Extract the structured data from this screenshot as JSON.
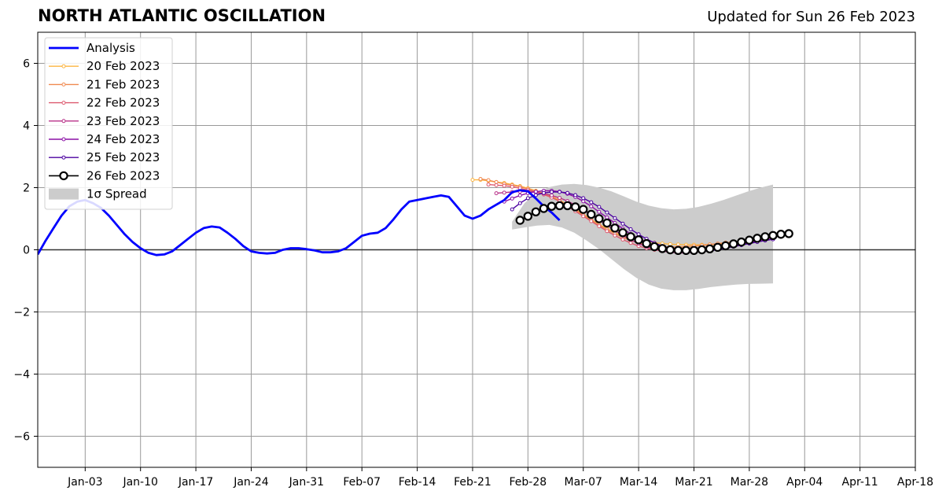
{
  "chart_data": {
    "type": "line",
    "title": "NORTH ATLANTIC OSCILLATION",
    "subtitle": "Updated for Sun 26 Feb 2023",
    "xlabel": "",
    "ylabel": "",
    "xlim": [
      "2022-12-28",
      "2023-04-18"
    ],
    "ylim": [
      -7,
      7
    ],
    "grid": true,
    "legend_position": "upper-left",
    "x_ticks": [
      "2023-01-03",
      "2023-01-10",
      "2023-01-17",
      "2023-01-24",
      "2023-01-31",
      "2023-02-07",
      "2023-02-14",
      "2023-02-21",
      "2023-02-28",
      "2023-03-07",
      "2023-03-14",
      "2023-03-21",
      "2023-03-28",
      "2023-04-04",
      "2023-04-11",
      "2023-04-18"
    ],
    "x_tick_labels": [
      "Jan-03",
      "Jan-10",
      "Jan-17",
      "Jan-24",
      "Jan-31",
      "Feb-07",
      "Feb-14",
      "Feb-21",
      "Feb-28",
      "Mar-07",
      "Mar-14",
      "Mar-21",
      "Mar-28",
      "Apr-04",
      "Apr-11",
      "Apr-18"
    ],
    "y_ticks": [
      -6,
      -4,
      -2,
      0,
      2,
      4,
      6
    ],
    "y_tick_labels": [
      "−6",
      "−4",
      "−2",
      "0",
      "2",
      "4",
      "6"
    ],
    "colors": {
      "analysis": "#0000ff",
      "f20": "#fcb540",
      "f21": "#f08a50",
      "f22": "#dd5a6f",
      "f23": "#b83289",
      "f24": "#8b10a6",
      "f25": "#4c02a1",
      "f26": "#000000",
      "spread": "#cccccc",
      "grid": "#999999"
    },
    "series": [
      {
        "name": "Analysis",
        "key": "analysis",
        "style": "analysis",
        "start": "2022-12-28",
        "values": [
          -0.15,
          0.3,
          0.7,
          1.1,
          1.4,
          1.55,
          1.6,
          1.5,
          1.35,
          1.1,
          0.8,
          0.5,
          0.25,
          0.05,
          -0.1,
          -0.17,
          -0.15,
          -0.05,
          0.15,
          0.35,
          0.55,
          0.7,
          0.75,
          0.72,
          0.55,
          0.35,
          0.12,
          -0.05,
          -0.1,
          -0.12,
          -0.1,
          0.0,
          0.05,
          0.05,
          0.02,
          -0.02,
          -0.08,
          -0.08,
          -0.05,
          0.05,
          0.25,
          0.45,
          0.52,
          0.55,
          0.7,
          0.98,
          1.3,
          1.55,
          1.6,
          1.65,
          1.7,
          1.75,
          1.7,
          1.4,
          1.1,
          1.0,
          1.1,
          1.3,
          1.45,
          1.6,
          1.85,
          1.92,
          1.88,
          1.65,
          1.4,
          1.2,
          0.95
        ]
      },
      {
        "name": "20 Feb 2023",
        "key": "f20",
        "style": "forecast",
        "start": "2023-02-21",
        "values": [
          2.25,
          2.25,
          2.22,
          2.18,
          2.15,
          2.1,
          2.05,
          1.98,
          1.9,
          1.82,
          1.72,
          1.6,
          1.45,
          1.3,
          1.15,
          0.98,
          0.82,
          0.68,
          0.55,
          0.45,
          0.38,
          0.32,
          0.27,
          0.23,
          0.2,
          0.18,
          0.17,
          0.16,
          0.16,
          0.16,
          0.17,
          0.18,
          0.2,
          0.22,
          0.24,
          0.26,
          0.28
        ]
      },
      {
        "name": "21 Feb 2023",
        "key": "f21",
        "style": "forecast",
        "start": "2023-02-22",
        "values": [
          2.28,
          2.24,
          2.18,
          2.12,
          2.08,
          2.03,
          1.96,
          1.88,
          1.8,
          1.7,
          1.58,
          1.44,
          1.28,
          1.12,
          0.96,
          0.8,
          0.65,
          0.52,
          0.4,
          0.3,
          0.22,
          0.16,
          0.12,
          0.1,
          0.09,
          0.09,
          0.1,
          0.12,
          0.14,
          0.17,
          0.2,
          0.23,
          0.25,
          0.27,
          0.3,
          0.32
        ]
      },
      {
        "name": "22 Feb 2023",
        "key": "f22",
        "style": "forecast",
        "start": "2023-02-23",
        "values": [
          2.1,
          2.08,
          2.06,
          2.03,
          1.98,
          1.92,
          1.86,
          1.78,
          1.68,
          1.56,
          1.4,
          1.24,
          1.08,
          0.92,
          0.76,
          0.6,
          0.46,
          0.33,
          0.22,
          0.12,
          0.05,
          0.0,
          -0.04,
          -0.06,
          -0.06,
          -0.05,
          -0.02,
          0.02,
          0.06,
          0.1,
          0.14,
          0.18,
          0.22,
          0.26,
          0.3,
          0.34
        ]
      },
      {
        "name": "23 Feb 2023",
        "key": "f23",
        "style": "forecast",
        "start": "2023-02-24",
        "values": [
          1.82,
          1.84,
          1.86,
          1.87,
          1.87,
          1.85,
          1.81,
          1.75,
          1.67,
          1.57,
          1.44,
          1.28,
          1.12,
          0.96,
          0.79,
          0.62,
          0.46,
          0.32,
          0.2,
          0.1,
          0.02,
          -0.04,
          -0.08,
          -0.1,
          -0.1,
          -0.08,
          -0.05,
          -0.01,
          0.04,
          0.09,
          0.14,
          0.19,
          0.24,
          0.28,
          0.32,
          0.36
        ]
      },
      {
        "name": "24 Feb 2023",
        "key": "f24",
        "style": "forecast",
        "start": "2023-02-25",
        "values": [
          1.55,
          1.65,
          1.75,
          1.82,
          1.87,
          1.9,
          1.9,
          1.87,
          1.8,
          1.7,
          1.56,
          1.4,
          1.22,
          1.04,
          0.86,
          0.68,
          0.51,
          0.36,
          0.23,
          0.12,
          0.03,
          -0.03,
          -0.07,
          -0.08,
          -0.08,
          -0.06,
          -0.03,
          0.01,
          0.06,
          0.11,
          0.16,
          0.21,
          0.26,
          0.3,
          0.34
        ]
      },
      {
        "name": "25 Feb 2023",
        "key": "f25",
        "style": "forecast",
        "start": "2023-02-26",
        "values": [
          1.3,
          1.5,
          1.66,
          1.76,
          1.83,
          1.86,
          1.86,
          1.83,
          1.76,
          1.66,
          1.53,
          1.38,
          1.2,
          1.02,
          0.84,
          0.66,
          0.5,
          0.35,
          0.22,
          0.12,
          0.04,
          -0.02,
          -0.05,
          -0.06,
          -0.05,
          -0.03,
          0.0,
          0.05,
          0.1,
          0.15,
          0.2,
          0.25,
          0.3,
          0.34
        ]
      },
      {
        "name": "26 Feb 2023",
        "key": "f26",
        "style": "current",
        "start": "2023-02-27",
        "values": [
          0.95,
          1.08,
          1.22,
          1.33,
          1.4,
          1.42,
          1.42,
          1.38,
          1.3,
          1.14,
          1.0,
          0.86,
          0.7,
          0.55,
          0.42,
          0.32,
          0.2,
          0.1,
          0.04,
          0.0,
          -0.02,
          -0.02,
          -0.02,
          0.0,
          0.03,
          0.08,
          0.13,
          0.19,
          0.25,
          0.31,
          0.37,
          0.42,
          0.46,
          0.5,
          0.52
        ]
      }
    ],
    "spread": {
      "name": "1σ Spread",
      "start": "2023-02-26",
      "end": "2023-03-31",
      "upper": [
        0.9,
        1.5,
        1.85,
        2.02,
        2.1,
        2.12,
        2.08,
        2.0,
        1.88,
        1.72,
        1.55,
        1.42,
        1.34,
        1.3,
        1.32,
        1.38,
        1.48,
        1.6,
        1.74,
        1.88,
        2.0,
        2.1
      ],
      "lower": [
        0.65,
        0.72,
        0.78,
        0.8,
        0.72,
        0.55,
        0.3,
        0.02,
        -0.3,
        -0.62,
        -0.9,
        -1.12,
        -1.25,
        -1.3,
        -1.3,
        -1.26,
        -1.2,
        -1.16,
        -1.12,
        -1.1,
        -1.09,
        -1.08
      ]
    }
  }
}
